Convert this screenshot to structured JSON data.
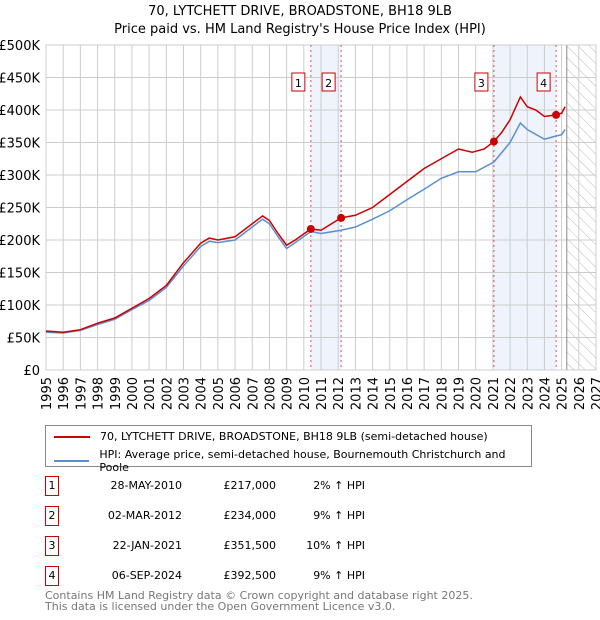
{
  "title": "70, LYTCHETT DRIVE, BROADSTONE, BH18 9LB",
  "subtitle": "Price paid vs. HM Land Registry's House Price Index (HPI)",
  "chart_data": {
    "type": "line",
    "title": "70, LYTCHETT DRIVE, BROADSTONE, BH18 9LB",
    "xlim": [
      1995,
      2027
    ],
    "ylim": [
      0,
      500000
    ],
    "yticks": [
      0,
      50000,
      100000,
      150000,
      200000,
      250000,
      300000,
      350000,
      400000,
      450000,
      500000
    ],
    "ytick_labels": [
      "£0",
      "£50K",
      "£100K",
      "£150K",
      "£200K",
      "£250K",
      "£300K",
      "£350K",
      "£400K",
      "£450K",
      "£500K"
    ],
    "xticks": [
      "1995",
      "1996",
      "1997",
      "1998",
      "1999",
      "2000",
      "2001",
      "2002",
      "2003",
      "2004",
      "2005",
      "2006",
      "2007",
      "2008",
      "2009",
      "2010",
      "2011",
      "2012",
      "2013",
      "2014",
      "2015",
      "2016",
      "2017",
      "2018",
      "2019",
      "2020",
      "2021",
      "2022",
      "2023",
      "2024",
      "2025",
      "2026",
      "2027"
    ],
    "grid": true,
    "shaded_periods": [
      [
        2010.41,
        2012.17
      ],
      [
        2021.06,
        2024.68
      ]
    ],
    "forecast_hatch_from": 2025.3,
    "series": [
      {
        "name": "70, LYTCHETT DRIVE, BROADSTONE, BH18 9LB (semi-detached house)",
        "color": "#cc0000",
        "x": [
          1995,
          1996,
          1997,
          1998,
          1999,
          2000,
          2001,
          2002,
          2003,
          2003.5,
          2004,
          2004.5,
          2005,
          2006,
          2007,
          2007.6,
          2008,
          2008.5,
          2009,
          2009.5,
          2010.41,
          2011,
          2012.17,
          2013,
          2014,
          2015,
          2016,
          2017,
          2018,
          2019,
          2019.8,
          2020.5,
          2021.06,
          2021.5,
          2022,
          2022.6,
          2023,
          2023.5,
          2024,
          2024.68,
          2025,
          2025.2
        ],
        "y": [
          60000,
          58000,
          62000,
          72000,
          80000,
          95000,
          110000,
          130000,
          165000,
          180000,
          195000,
          203000,
          200000,
          205000,
          225000,
          237000,
          230000,
          210000,
          192000,
          200000,
          217000,
          215000,
          234000,
          238000,
          250000,
          270000,
          290000,
          310000,
          325000,
          340000,
          335000,
          340000,
          351500,
          365000,
          385000,
          420000,
          405000,
          400000,
          390000,
          392500,
          395000,
          405000
        ]
      },
      {
        "name": "HPI: Average price, semi-detached house, Bournemouth Christchurch and Poole",
        "color": "#5b8fd0",
        "x": [
          1995,
          1996,
          1997,
          1998,
          1999,
          2000,
          2001,
          2002,
          2003,
          2003.5,
          2004,
          2004.5,
          2005,
          2006,
          2007,
          2007.6,
          2008,
          2008.5,
          2009,
          2009.5,
          2010.41,
          2011,
          2012.17,
          2013,
          2014,
          2015,
          2016,
          2017,
          2018,
          2019,
          2020,
          2021.06,
          2022,
          2022.6,
          2023,
          2024,
          2024.68,
          2025,
          2025.2
        ],
        "y": [
          58000,
          57000,
          61000,
          70000,
          78000,
          93000,
          107000,
          127000,
          160000,
          175000,
          190000,
          198000,
          196000,
          200000,
          220000,
          232000,
          225000,
          205000,
          187000,
          196000,
          213000,
          210000,
          215000,
          220000,
          232000,
          245000,
          262000,
          278000,
          295000,
          305000,
          305000,
          320000,
          350000,
          380000,
          370000,
          355000,
          360000,
          362000,
          370000
        ]
      }
    ],
    "markers": [
      {
        "label": "1",
        "x": 2010.41,
        "y": 217000
      },
      {
        "label": "2",
        "x": 2012.17,
        "y": 234000
      },
      {
        "label": "3",
        "x": 2021.06,
        "y": 351500
      },
      {
        "label": "4",
        "x": 2024.68,
        "y": 392500
      }
    ]
  },
  "legend": {
    "property": "70, LYTCHETT DRIVE, BROADSTONE, BH18 9LB (semi-detached house)",
    "hpi": "HPI: Average price, semi-detached house, Bournemouth Christchurch and Poole"
  },
  "transactions": [
    {
      "num": "1",
      "date": "28-MAY-2010",
      "price": "£217,000",
      "hpi": "2% ↑ HPI"
    },
    {
      "num": "2",
      "date": "02-MAR-2012",
      "price": "£234,000",
      "hpi": "9% ↑ HPI"
    },
    {
      "num": "3",
      "date": "22-JAN-2021",
      "price": "£351,500",
      "hpi": "10% ↑ HPI"
    },
    {
      "num": "4",
      "date": "06-SEP-2024",
      "price": "£392,500",
      "hpi": "9% ↑ HPI"
    }
  ],
  "footer": {
    "line1": "Contains HM Land Registry data © Crown copyright and database right 2025.",
    "line2": "This data is licensed under the Open Government Licence v3.0."
  }
}
